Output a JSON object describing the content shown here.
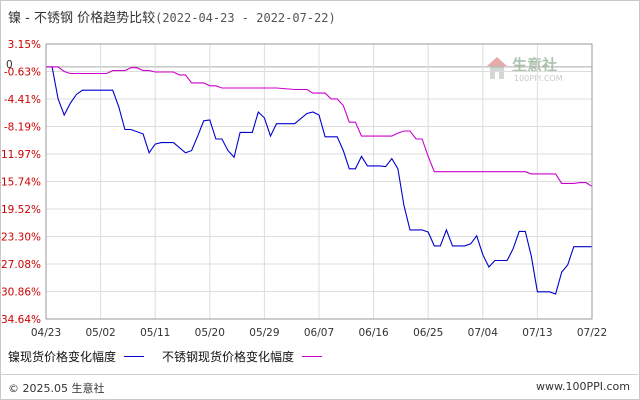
{
  "title": {
    "main": "镍 - 不锈钢 价格趋势比较",
    "range": "(2022-04-23 - 2022-07-22)"
  },
  "watermark": {
    "text": "生意社",
    "url": "100PPI.COM"
  },
  "footer": {
    "copyright": "© 2025.05 生意社",
    "url": "www.100PPI.com"
  },
  "colors": {
    "nickel": "#0000cc",
    "stainless": "#cc00cc",
    "ytick": "#cc0000",
    "grid": "#dddddd"
  },
  "chart_data": {
    "type": "line",
    "title": "镍 - 不锈钢 价格趋势比较(2022-04-23 - 2022-07-22)",
    "xlabel": "",
    "ylabel": "",
    "x_range": [
      "2022-04-23",
      "2022-07-22"
    ],
    "ylim": [
      -34.64,
      3.15
    ],
    "y_ticks": [
      "3.15%",
      "-0.63%",
      "-4.41%",
      "-8.19%",
      "-11.97%",
      "-15.74%",
      "-19.52%",
      "-23.30%",
      "-27.08%",
      "-30.86%",
      "-34.64%"
    ],
    "y_tick_values": [
      3.15,
      -0.63,
      -4.41,
      -8.19,
      -11.97,
      -15.74,
      -19.52,
      -23.3,
      -27.08,
      -30.86,
      -34.64
    ],
    "y_zero_label": "0",
    "x_ticks": [
      "04/23",
      "05/02",
      "05/11",
      "05/20",
      "05/29",
      "06/07",
      "06/16",
      "06/25",
      "07/04",
      "07/13",
      "07/22"
    ],
    "grid": true,
    "legend_position": "bottom-left",
    "series": [
      {
        "name": "镍现货价格变化幅度",
        "color": "#0000cc",
        "points": [
          [
            "2022-04-23",
            0.0
          ],
          [
            "2022-04-24",
            0.0
          ],
          [
            "2022-04-25",
            -4.4
          ],
          [
            "2022-04-26",
            -6.6
          ],
          [
            "2022-04-27",
            -5.0
          ],
          [
            "2022-04-28",
            -3.8
          ],
          [
            "2022-04-29",
            -3.2
          ],
          [
            "2022-05-02",
            -3.2
          ],
          [
            "2022-05-03",
            -3.2
          ],
          [
            "2022-05-04",
            -3.2
          ],
          [
            "2022-05-05",
            -5.5
          ],
          [
            "2022-05-06",
            -8.6
          ],
          [
            "2022-05-07",
            -8.6
          ],
          [
            "2022-05-09",
            -9.2
          ],
          [
            "2022-05-10",
            -11.8
          ],
          [
            "2022-05-11",
            -10.6
          ],
          [
            "2022-05-12",
            -10.4
          ],
          [
            "2022-05-13",
            -10.4
          ],
          [
            "2022-05-14",
            -10.4
          ],
          [
            "2022-05-16",
            -11.8
          ],
          [
            "2022-05-17",
            -11.5
          ],
          [
            "2022-05-18",
            -9.5
          ],
          [
            "2022-05-19",
            -7.4
          ],
          [
            "2022-05-20",
            -7.3
          ],
          [
            "2022-05-21",
            -9.9
          ],
          [
            "2022-05-22",
            -9.9
          ],
          [
            "2022-05-23",
            -11.5
          ],
          [
            "2022-05-24",
            -12.4
          ],
          [
            "2022-05-25",
            -9.0
          ],
          [
            "2022-05-26",
            -9.0
          ],
          [
            "2022-05-27",
            -9.0
          ],
          [
            "2022-05-28",
            -6.2
          ],
          [
            "2022-05-29",
            -7.0
          ],
          [
            "2022-05-30",
            -9.5
          ],
          [
            "2022-05-31",
            -7.8
          ],
          [
            "2022-06-01",
            -7.8
          ],
          [
            "2022-06-02",
            -7.8
          ],
          [
            "2022-06-03",
            -7.8
          ],
          [
            "2022-06-05",
            -6.4
          ],
          [
            "2022-06-06",
            -6.2
          ],
          [
            "2022-06-07",
            -6.6
          ],
          [
            "2022-06-08",
            -9.6
          ],
          [
            "2022-06-09",
            -9.6
          ],
          [
            "2022-06-10",
            -9.6
          ],
          [
            "2022-06-11",
            -11.5
          ],
          [
            "2022-06-12",
            -14.0
          ],
          [
            "2022-06-13",
            -14.0
          ],
          [
            "2022-06-14",
            -12.3
          ],
          [
            "2022-06-15",
            -13.6
          ],
          [
            "2022-06-16",
            -13.6
          ],
          [
            "2022-06-17",
            -13.6
          ],
          [
            "2022-06-18",
            -13.7
          ],
          [
            "2022-06-19",
            -12.6
          ],
          [
            "2022-06-20",
            -14.0
          ],
          [
            "2022-06-21",
            -19.0
          ],
          [
            "2022-06-22",
            -22.4
          ],
          [
            "2022-06-23",
            -22.4
          ],
          [
            "2022-06-24",
            -22.4
          ],
          [
            "2022-06-25",
            -22.7
          ],
          [
            "2022-06-26",
            -24.6
          ],
          [
            "2022-06-27",
            -24.6
          ],
          [
            "2022-06-28",
            -22.4
          ],
          [
            "2022-06-29",
            -24.6
          ],
          [
            "2022-07-01",
            -24.6
          ],
          [
            "2022-07-02",
            -24.3
          ],
          [
            "2022-07-03",
            -23.2
          ],
          [
            "2022-07-04",
            -25.8
          ],
          [
            "2022-07-05",
            -27.5
          ],
          [
            "2022-07-06",
            -26.6
          ],
          [
            "2022-07-07",
            -26.6
          ],
          [
            "2022-07-08",
            -26.6
          ],
          [
            "2022-07-09",
            -25.0
          ],
          [
            "2022-07-10",
            -22.6
          ],
          [
            "2022-07-11",
            -22.6
          ],
          [
            "2022-07-12",
            -26.0
          ],
          [
            "2022-07-13",
            -30.9
          ],
          [
            "2022-07-14",
            -30.9
          ],
          [
            "2022-07-15",
            -30.9
          ],
          [
            "2022-07-16",
            -31.2
          ],
          [
            "2022-07-17",
            -28.2
          ],
          [
            "2022-07-18",
            -27.2
          ],
          [
            "2022-07-19",
            -24.7
          ],
          [
            "2022-07-21",
            -24.7
          ],
          [
            "2022-07-22",
            -24.7
          ]
        ]
      },
      {
        "name": "不锈钢现货价格变化幅度",
        "color": "#cc00cc",
        "points": [
          [
            "2022-04-23",
            0.0
          ],
          [
            "2022-04-25",
            0.0
          ],
          [
            "2022-04-26",
            -0.63
          ],
          [
            "2022-04-27",
            -0.9
          ],
          [
            "2022-04-29",
            -0.9
          ],
          [
            "2022-05-03",
            -0.9
          ],
          [
            "2022-05-04",
            -0.5
          ],
          [
            "2022-05-06",
            -0.5
          ],
          [
            "2022-05-07",
            -0.1
          ],
          [
            "2022-05-08",
            -0.1
          ],
          [
            "2022-05-09",
            -0.5
          ],
          [
            "2022-05-10",
            -0.5
          ],
          [
            "2022-05-11",
            -0.7
          ],
          [
            "2022-05-14",
            -0.7
          ],
          [
            "2022-05-15",
            -1.1
          ],
          [
            "2022-05-16",
            -1.1
          ],
          [
            "2022-05-17",
            -2.2
          ],
          [
            "2022-05-19",
            -2.2
          ],
          [
            "2022-05-20",
            -2.6
          ],
          [
            "2022-05-21",
            -2.6
          ],
          [
            "2022-05-22",
            -2.9
          ],
          [
            "2022-05-31",
            -2.9
          ],
          [
            "2022-06-03",
            -3.1
          ],
          [
            "2022-06-05",
            -3.1
          ],
          [
            "2022-06-06",
            -3.6
          ],
          [
            "2022-06-08",
            -3.6
          ],
          [
            "2022-06-09",
            -4.4
          ],
          [
            "2022-06-10",
            -4.4
          ],
          [
            "2022-06-11",
            -5.3
          ],
          [
            "2022-06-12",
            -7.6
          ],
          [
            "2022-06-13",
            -7.6
          ],
          [
            "2022-06-14",
            -9.5
          ],
          [
            "2022-06-16",
            -9.5
          ],
          [
            "2022-06-19",
            -9.5
          ],
          [
            "2022-06-20",
            -9.1
          ],
          [
            "2022-06-21",
            -8.8
          ],
          [
            "2022-06-22",
            -8.8
          ],
          [
            "2022-06-23",
            -9.9
          ],
          [
            "2022-06-24",
            -9.9
          ],
          [
            "2022-06-25",
            -12.3
          ],
          [
            "2022-06-26",
            -14.4
          ],
          [
            "2022-07-01",
            -14.4
          ],
          [
            "2022-07-03",
            -14.4
          ],
          [
            "2022-07-11",
            -14.4
          ],
          [
            "2022-07-12",
            -14.7
          ],
          [
            "2022-07-14",
            -14.7
          ],
          [
            "2022-07-16",
            -14.7
          ],
          [
            "2022-07-17",
            -16.0
          ],
          [
            "2022-07-18",
            -16.0
          ],
          [
            "2022-07-19",
            -16.0
          ],
          [
            "2022-07-20",
            -15.9
          ],
          [
            "2022-07-21",
            -15.9
          ],
          [
            "2022-07-22",
            -16.4
          ]
        ]
      }
    ]
  }
}
